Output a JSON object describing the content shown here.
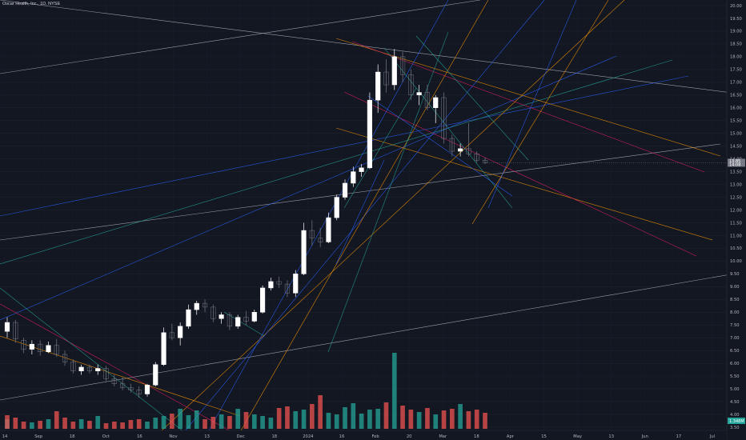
{
  "header": {
    "symbol": "Oscar Health, Inc., 1D, NYSE"
  },
  "price_axis": {
    "ticks": [
      "20.00",
      "19.50",
      "19.00",
      "18.50",
      "18.00",
      "17.50",
      "17.00",
      "16.50",
      "16.00",
      "15.50",
      "15.00",
      "14.50",
      "14.00",
      "13.50",
      "13.00",
      "12.50",
      "12.00",
      "11.50",
      "11.00",
      "10.50",
      "10.00",
      "9.50",
      "9.00",
      "8.50",
      "8.00",
      "7.50",
      "7.00",
      "6.50",
      "6.00",
      "5.50",
      "5.00",
      "4.50",
      "4.00",
      "3.50"
    ],
    "last_price_label": "13.85",
    "last_price_sub": "14:08",
    "volume_label": "1.348M"
  },
  "time_axis": {
    "ticks": [
      "14",
      "Sep",
      "18",
      "Oct",
      "16",
      "Nov",
      "13",
      "Dec",
      "18",
      "2024",
      "16",
      "Feb",
      "20",
      "Mar",
      "18",
      "Apr",
      "15",
      "May",
      "13",
      "Jun",
      "17",
      "Jul"
    ]
  },
  "colors": {
    "up": "#ffffff",
    "down": "#787b86",
    "vol_up": "#26a69a",
    "vol_down": "#ef5350",
    "bg": "#131722"
  },
  "chart_data": {
    "type": "candlestick",
    "title": "Oscar Health, Inc., 1D, NYSE",
    "y_range": [
      3.5,
      20.0
    ],
    "grid": true,
    "candles": [
      {
        "date": "Aug 14",
        "o": 7.25,
        "h": 7.8,
        "l": 7.0,
        "c": 7.6
      },
      {
        "date": "Aug 18",
        "o": 7.6,
        "h": 7.7,
        "l": 6.8,
        "c": 6.95
      },
      {
        "date": "Aug 23",
        "o": 6.9,
        "h": 7.0,
        "l": 6.4,
        "c": 6.55
      },
      {
        "date": "Aug 28",
        "o": 6.55,
        "h": 6.9,
        "l": 6.35,
        "c": 6.75
      },
      {
        "date": "Sep 1",
        "o": 6.75,
        "h": 6.9,
        "l": 6.3,
        "c": 6.45
      },
      {
        "date": "Sep 6",
        "o": 6.45,
        "h": 6.85,
        "l": 6.4,
        "c": 6.7
      },
      {
        "date": "Sep 11",
        "o": 6.7,
        "h": 6.95,
        "l": 6.25,
        "c": 6.35
      },
      {
        "date": "Sep 15",
        "o": 6.35,
        "h": 6.5,
        "l": 5.9,
        "c": 6.05
      },
      {
        "date": "Sep 20",
        "o": 6.05,
        "h": 6.15,
        "l": 5.6,
        "c": 5.7
      },
      {
        "date": "Sep 25",
        "o": 5.7,
        "h": 5.95,
        "l": 5.55,
        "c": 5.85
      },
      {
        "date": "Sep 29",
        "o": 5.85,
        "h": 5.95,
        "l": 5.6,
        "c": 5.7
      },
      {
        "date": "Oct 4",
        "o": 5.7,
        "h": 5.95,
        "l": 5.55,
        "c": 5.8
      },
      {
        "date": "Oct 9",
        "o": 5.8,
        "h": 5.9,
        "l": 5.3,
        "c": 5.4
      },
      {
        "date": "Oct 13",
        "o": 5.4,
        "h": 5.55,
        "l": 5.1,
        "c": 5.2
      },
      {
        "date": "Oct 18",
        "o": 5.2,
        "h": 5.45,
        "l": 4.95,
        "c": 5.05
      },
      {
        "date": "Oct 23",
        "o": 5.05,
        "h": 5.2,
        "l": 4.85,
        "c": 4.95
      },
      {
        "date": "Oct 27",
        "o": 4.95,
        "h": 5.1,
        "l": 4.65,
        "c": 4.8
      },
      {
        "date": "Nov 1",
        "o": 4.8,
        "h": 5.2,
        "l": 4.7,
        "c": 5.15
      },
      {
        "date": "Nov 3",
        "o": 5.15,
        "h": 6.05,
        "l": 5.1,
        "c": 5.95
      },
      {
        "date": "Nov 7",
        "o": 5.95,
        "h": 7.4,
        "l": 5.9,
        "c": 7.2
      },
      {
        "date": "Nov 10",
        "o": 7.2,
        "h": 7.55,
        "l": 6.9,
        "c": 7.0
      },
      {
        "date": "Nov 13",
        "o": 7.0,
        "h": 7.6,
        "l": 6.7,
        "c": 7.45
      },
      {
        "date": "Nov 16",
        "o": 7.45,
        "h": 8.3,
        "l": 7.35,
        "c": 8.1
      },
      {
        "date": "Nov 20",
        "o": 8.1,
        "h": 8.45,
        "l": 7.9,
        "c": 8.35
      },
      {
        "date": "Nov 24",
        "o": 8.35,
        "h": 8.5,
        "l": 8.0,
        "c": 8.2
      },
      {
        "date": "Nov 28",
        "o": 8.2,
        "h": 8.3,
        "l": 7.6,
        "c": 7.75
      },
      {
        "date": "Dec 1",
        "o": 7.75,
        "h": 8.0,
        "l": 7.55,
        "c": 7.9
      },
      {
        "date": "Dec 5",
        "o": 7.9,
        "h": 8.0,
        "l": 7.3,
        "c": 7.45
      },
      {
        "date": "Dec 8",
        "o": 7.45,
        "h": 7.9,
        "l": 7.35,
        "c": 7.8
      },
      {
        "date": "Dec 12",
        "o": 7.8,
        "h": 8.05,
        "l": 7.5,
        "c": 7.65
      },
      {
        "date": "Dec 15",
        "o": 7.65,
        "h": 8.1,
        "l": 7.6,
        "c": 8.0
      },
      {
        "date": "Dec 19",
        "o": 8.0,
        "h": 9.05,
        "l": 7.95,
        "c": 8.95
      },
      {
        "date": "Dec 22",
        "o": 8.95,
        "h": 9.35,
        "l": 8.85,
        "c": 9.2
      },
      {
        "date": "Dec 27",
        "o": 9.2,
        "h": 9.4,
        "l": 8.95,
        "c": 9.1
      },
      {
        "date": "Jan 3",
        "o": 9.1,
        "h": 9.25,
        "l": 8.6,
        "c": 8.75
      },
      {
        "date": "Jan 8",
        "o": 8.75,
        "h": 9.65,
        "l": 8.6,
        "c": 9.5
      },
      {
        "date": "Jan 11",
        "o": 9.5,
        "h": 11.5,
        "l": 9.45,
        "c": 11.2
      },
      {
        "date": "Jan 16",
        "o": 11.2,
        "h": 11.6,
        "l": 10.6,
        "c": 10.9
      },
      {
        "date": "Jan 19",
        "o": 10.9,
        "h": 11.3,
        "l": 10.55,
        "c": 10.75
      },
      {
        "date": "Jan 23",
        "o": 10.75,
        "h": 11.9,
        "l": 10.7,
        "c": 11.7
      },
      {
        "date": "Jan 26",
        "o": 11.7,
        "h": 12.6,
        "l": 11.6,
        "c": 12.5
      },
      {
        "date": "Jan 30",
        "o": 12.5,
        "h": 13.2,
        "l": 12.4,
        "c": 13.05
      },
      {
        "date": "Feb 2",
        "o": 13.05,
        "h": 13.7,
        "l": 12.9,
        "c": 13.5
      },
      {
        "date": "Feb 6",
        "o": 13.5,
        "h": 13.8,
        "l": 13.3,
        "c": 13.65
      },
      {
        "date": "Feb 9",
        "o": 13.65,
        "h": 16.6,
        "l": 13.6,
        "c": 16.3
      },
      {
        "date": "Feb 13",
        "o": 16.3,
        "h": 17.7,
        "l": 15.8,
        "c": 17.4
      },
      {
        "date": "Feb 15",
        "o": 17.4,
        "h": 17.9,
        "l": 16.6,
        "c": 16.9
      },
      {
        "date": "Feb 20",
        "o": 16.9,
        "h": 18.3,
        "l": 16.7,
        "c": 18.0
      },
      {
        "date": "Feb 23",
        "o": 18.0,
        "h": 18.2,
        "l": 17.0,
        "c": 17.3
      },
      {
        "date": "Feb 27",
        "o": 17.3,
        "h": 17.5,
        "l": 16.3,
        "c": 16.5
      },
      {
        "date": "Mar 1",
        "o": 16.5,
        "h": 16.9,
        "l": 16.1,
        "c": 16.6
      },
      {
        "date": "Mar 4",
        "o": 16.6,
        "h": 16.9,
        "l": 15.9,
        "c": 16.0
      },
      {
        "date": "Mar 7",
        "o": 16.0,
        "h": 16.5,
        "l": 15.4,
        "c": 16.4
      },
      {
        "date": "Mar 11",
        "o": 16.4,
        "h": 16.6,
        "l": 14.6,
        "c": 14.8
      },
      {
        "date": "Mar 13",
        "o": 14.8,
        "h": 14.95,
        "l": 14.1,
        "c": 14.3
      },
      {
        "date": "Mar 15",
        "o": 14.3,
        "h": 14.6,
        "l": 14.1,
        "c": 14.4
      },
      {
        "date": "Mar 19",
        "o": 14.4,
        "h": 15.4,
        "l": 14.1,
        "c": 14.2
      },
      {
        "date": "Mar 21",
        "o": 14.2,
        "h": 14.3,
        "l": 13.85,
        "c": 13.95
      },
      {
        "date": "Mar 25",
        "o": 13.95,
        "h": 14.05,
        "l": 13.8,
        "c": 13.85
      }
    ],
    "volume_max_label": "1.348M"
  }
}
